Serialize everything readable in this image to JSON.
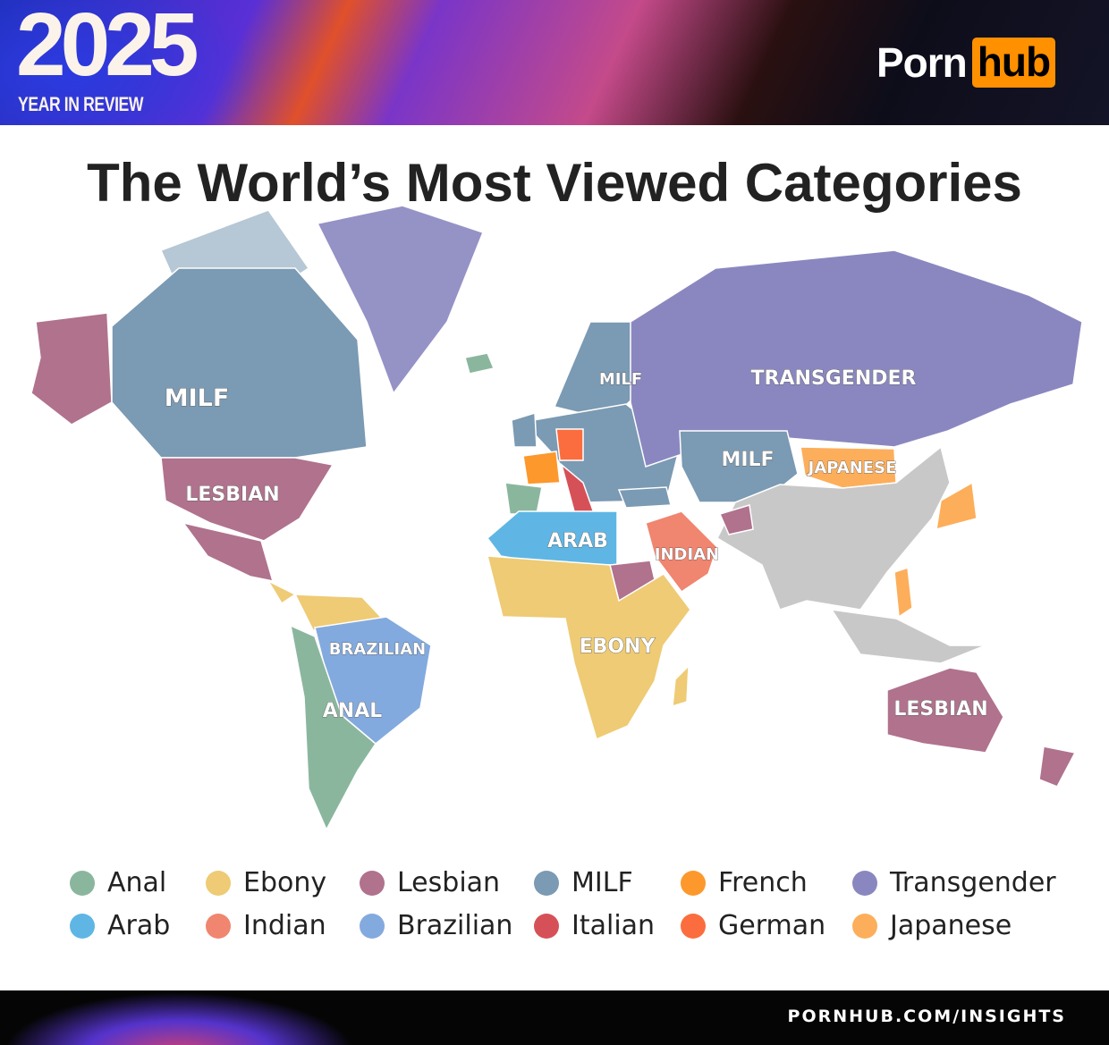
{
  "header": {
    "year": "2025",
    "subtitle": "YEAR IN REVIEW",
    "logo_part1": "Porn",
    "logo_part2": "hub",
    "logo_accent": "#ff9000"
  },
  "title": "The World’s Most Viewed Categories",
  "categories": {
    "anal": {
      "label": "Anal",
      "color": "#8bb69e"
    },
    "ebony": {
      "label": "Ebony",
      "color": "#eecb74"
    },
    "lesbian": {
      "label": "Lesbian",
      "color": "#b0728d"
    },
    "milf": {
      "label": "MILF",
      "color": "#7b9ab3"
    },
    "french": {
      "label": "French",
      "color": "#fd982c"
    },
    "transgender": {
      "label": "Transgender",
      "color": "#8a87c0"
    },
    "arab": {
      "label": "Arab",
      "color": "#5fb6e4"
    },
    "indian": {
      "label": "Indian",
      "color": "#f08570"
    },
    "brazilian": {
      "label": "Brazilian",
      "color": "#83aade"
    },
    "italian": {
      "label": "Italian",
      "color": "#d65157"
    },
    "german": {
      "label": "German",
      "color": "#fb6d3e"
    },
    "japanese": {
      "label": "Japanese",
      "color": "#fdae5b"
    },
    "none": {
      "label": "",
      "color": "#c8c8c8"
    }
  },
  "legend_order": [
    "anal",
    "ebony",
    "lesbian",
    "milf",
    "french",
    "transgender",
    "arab",
    "indian",
    "brazilian",
    "italian",
    "german",
    "japanese"
  ],
  "map_labels": [
    {
      "text": "MILF",
      "region": "North America"
    },
    {
      "text": "LESBIAN",
      "region": "United States"
    },
    {
      "text": "BRAZILIAN",
      "region": "Brazil"
    },
    {
      "text": "ANAL",
      "region": "Southern South America"
    },
    {
      "text": "ARAB",
      "region": "North Africa"
    },
    {
      "text": "INDIAN",
      "region": "Arabian Peninsula"
    },
    {
      "text": "EBONY",
      "region": "Sub-Saharan Africa"
    },
    {
      "text": "MILF",
      "region": "Northern Europe"
    },
    {
      "text": "TRANSGENDER",
      "region": "Russia"
    },
    {
      "text": "MILF",
      "region": "Central Asia"
    },
    {
      "text": "JAPANESE",
      "region": "Mongolia"
    },
    {
      "text": "LESBIAN",
      "region": "Australia"
    }
  ],
  "footer": {
    "url": "PORNHUB.COM/INSIGHTS"
  }
}
